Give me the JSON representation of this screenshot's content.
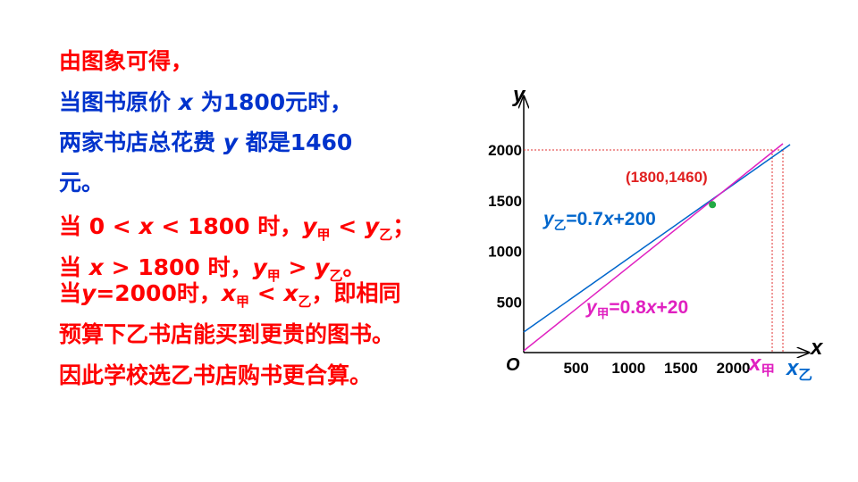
{
  "text": {
    "lines": [
      {
        "color": "#ff0000",
        "runs": [
          {
            "t": "由图象可得，"
          }
        ]
      },
      {
        "color": "#0033cc",
        "runs": [
          {
            "t": "当图书原价 "
          },
          {
            "t": "x",
            "i": true
          },
          {
            "t": " 为1800元时，"
          }
        ]
      },
      {
        "color": "#0033cc",
        "runs": [
          {
            "t": "两家书店总花费 "
          },
          {
            "t": "y",
            "i": true
          },
          {
            "t": " 都是1460"
          }
        ]
      },
      {
        "color": "#0033cc",
        "runs": [
          {
            "t": "元。"
          }
        ]
      },
      {
        "color": "#ff0000",
        "runs": [
          {
            "t": "当 0 < "
          },
          {
            "t": "x",
            "i": true
          },
          {
            "t": " < 1800 时，"
          },
          {
            "t": "y",
            "i": true
          },
          {
            "t": "甲",
            "sub": true
          },
          {
            "t": " < "
          },
          {
            "t": "y",
            "i": true
          },
          {
            "t": "乙",
            "sub": true
          },
          {
            "t": "；"
          }
        ]
      },
      {
        "color": "#ff0000",
        "runs": [
          {
            "t": "当 "
          },
          {
            "t": "x",
            "i": true
          },
          {
            "t": " > 1800 时，"
          },
          {
            "t": "y",
            "i": true
          },
          {
            "t": "甲",
            "sub": true
          },
          {
            "t": " > "
          },
          {
            "t": "y",
            "i": true
          },
          {
            "t": "乙",
            "sub": true
          },
          {
            "t": "。"
          }
        ]
      },
      {
        "color": "#ff0000",
        "runs": [
          {
            "t": "当"
          },
          {
            "t": "y",
            "i": true
          },
          {
            "t": "=2000时，"
          },
          {
            "t": "x",
            "i": true
          },
          {
            "t": "甲",
            "sub": true
          },
          {
            "t": " < "
          },
          {
            "t": "x",
            "i": true
          },
          {
            "t": "乙",
            "sub": true
          },
          {
            "t": "，即相同"
          }
        ]
      },
      {
        "color": "#ff0000",
        "runs": [
          {
            "t": "预算下乙书店能买到更贵的图书。"
          }
        ]
      },
      {
        "color": "#ff0000",
        "runs": [
          {
            "t": "因此学校选乙书店购书更合算。"
          }
        ]
      }
    ]
  },
  "graph": {
    "x_axis_label": "x",
    "y_axis_label": "y",
    "origin_label": "O",
    "xticks": [
      500,
      1000,
      1500,
      2000
    ],
    "yticks": [
      500,
      1000,
      1500,
      2000
    ],
    "point": {
      "x": 1800,
      "y": 1460,
      "label": "(1800,1460)"
    },
    "line_labels": [
      {
        "color": "#0066cc",
        "runs": [
          {
            "t": "y",
            "i": true
          },
          {
            "t": "乙",
            "sub": true
          },
          {
            "t": "=0.7"
          },
          {
            "t": "x",
            "i": true
          },
          {
            "t": "+200"
          }
        ]
      },
      {
        "color": "#e020c0",
        "runs": [
          {
            "t": "y",
            "i": true
          },
          {
            "t": "甲",
            "sub": true
          },
          {
            "t": "=0.8"
          },
          {
            "t": "x",
            "i": true
          },
          {
            "t": "+20"
          }
        ]
      }
    ],
    "x_markers": [
      {
        "color": "#e020c0",
        "runs": [
          {
            "t": "x",
            "i": true
          },
          {
            "t": "甲",
            "sub": true
          }
        ]
      },
      {
        "color": "#0066cc",
        "runs": [
          {
            "t": "x",
            "i": true
          },
          {
            "t": "乙",
            "sub": true
          }
        ]
      }
    ]
  }
}
